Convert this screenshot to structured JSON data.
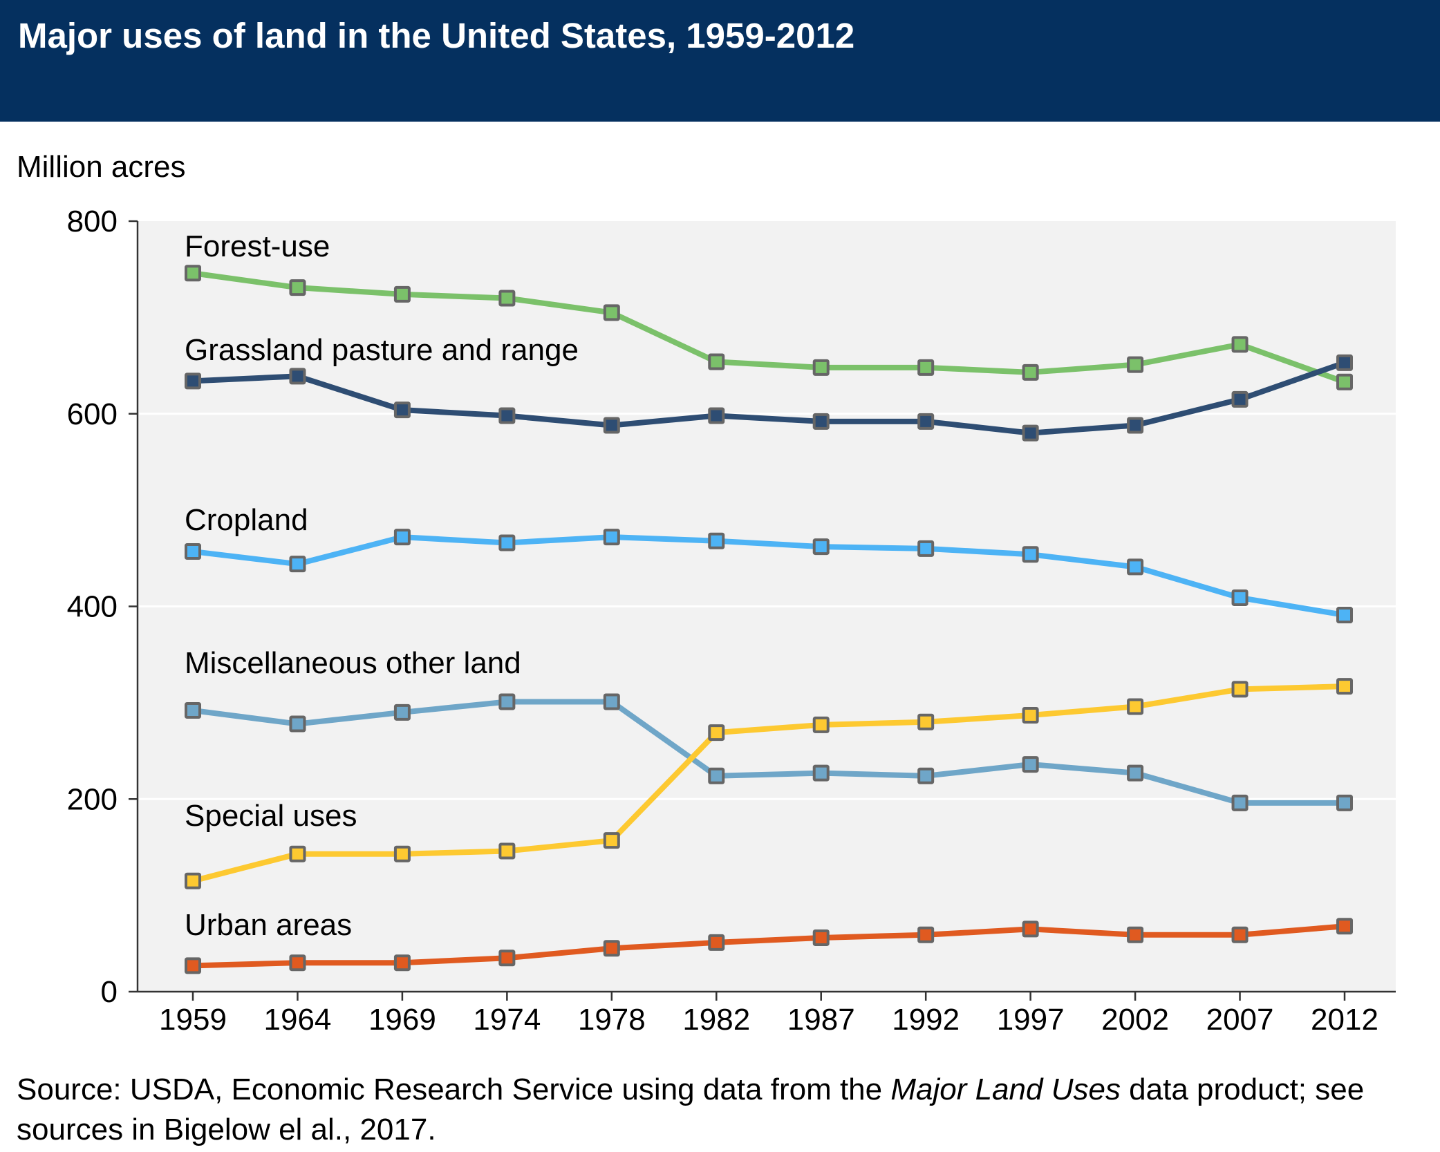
{
  "header": {
    "title": "Major uses of land in the United States, 1959-2012"
  },
  "source": {
    "prefix": "Source: USDA, Economic Research Service using data from the ",
    "italic": "Major Land Uses",
    "suffix": " data product; see sources in Bigelow el al., 2017."
  },
  "chart_data": {
    "type": "line",
    "title": "Major uses of land in the United States, 1959-2012",
    "ylabel": "Million acres",
    "xlabel": "",
    "ylim": [
      0,
      800
    ],
    "yticks": [
      0,
      200,
      400,
      600,
      800
    ],
    "grid": "horizontal",
    "categories": [
      "1959",
      "1964",
      "1969",
      "1974",
      "1978",
      "1982",
      "1987",
      "1992",
      "1997",
      "2002",
      "2007",
      "2012"
    ],
    "series": [
      {
        "name": "Forest-use",
        "color": "#7bc16a",
        "values": [
          746,
          731,
          724,
          720,
          705,
          654,
          648,
          648,
          643,
          651,
          672,
          633
        ]
      },
      {
        "name": "Grassland pasture and range",
        "color": "#2e4d73",
        "values": [
          634,
          639,
          604,
          598,
          588,
          598,
          592,
          592,
          580,
          588,
          615,
          653
        ]
      },
      {
        "name": "Cropland",
        "color": "#4db3f5",
        "values": [
          457,
          444,
          472,
          466,
          472,
          468,
          462,
          460,
          454,
          441,
          409,
          391
        ]
      },
      {
        "name": "Miscellaneous other land",
        "color": "#6fa6c8",
        "values": [
          292,
          278,
          290,
          301,
          301,
          224,
          227,
          224,
          236,
          227,
          196,
          196
        ]
      },
      {
        "name": "Special uses",
        "color": "#fdc931",
        "values": [
          115,
          143,
          143,
          146,
          157,
          269,
          277,
          280,
          287,
          296,
          314,
          317
        ]
      },
      {
        "name": "Urban areas",
        "color": "#e05a20",
        "values": [
          27,
          30,
          30,
          35,
          45,
          51,
          56,
          59,
          65,
          59,
          59,
          68
        ]
      }
    ]
  }
}
